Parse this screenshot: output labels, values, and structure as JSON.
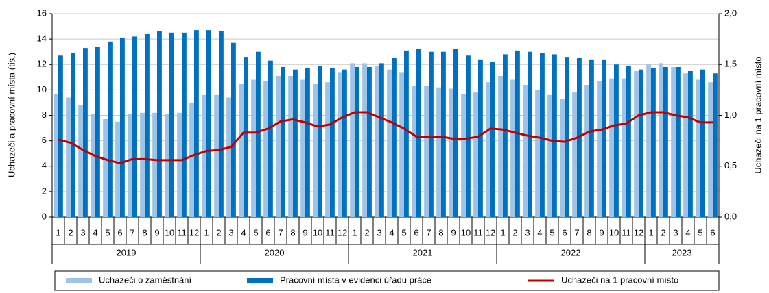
{
  "chart_data": {
    "type": "bar-line",
    "y_label": "Uchazeči a pracovní  místa (tis.)",
    "y2_label": "Uchazeči na 1 pracovní  místo",
    "periods": [
      {
        "year": "2019",
        "months": [
          "1",
          "2",
          "3",
          "4",
          "5",
          "6",
          "7",
          "8",
          "9",
          "10",
          "11",
          "12"
        ]
      },
      {
        "year": "2020",
        "months": [
          "1",
          "2",
          "3",
          "4",
          "5",
          "6",
          "7",
          "8",
          "9",
          "10",
          "11",
          "12"
        ]
      },
      {
        "year": "2021",
        "months": [
          "1",
          "2",
          "3",
          "4",
          "5",
          "6",
          "7",
          "8",
          "9",
          "10",
          "11",
          "12"
        ]
      },
      {
        "year": "2022",
        "months": [
          "1",
          "2",
          "3",
          "4",
          "5",
          "6",
          "7",
          "8",
          "9",
          "10",
          "11",
          "12"
        ]
      },
      {
        "year": "2023",
        "months": [
          "1",
          "2",
          "3",
          "4",
          "5",
          "6"
        ]
      }
    ],
    "ylim": [
      0,
      16
    ],
    "yticks": [
      0,
      2,
      4,
      6,
      8,
      10,
      12,
      14,
      16
    ],
    "y2lim": [
      0,
      2
    ],
    "y2ticks": [
      {
        "value": 0,
        "label": "0,0"
      },
      {
        "value": 0.5,
        "label": "0,5"
      },
      {
        "value": 1,
        "label": "1,0"
      },
      {
        "value": 1.5,
        "label": "1,5"
      },
      {
        "value": 2,
        "label": "2,0"
      }
    ],
    "grid": true,
    "series": [
      {
        "name": "Uchazeči o zaměstnání",
        "kind": "bar",
        "color": "#9dc3e6",
        "values": [
          9.7,
          9.4,
          8.8,
          8.1,
          7.7,
          7.5,
          8.1,
          8.2,
          8.2,
          8.1,
          8.2,
          9.0,
          9.6,
          9.6,
          9.4,
          10.5,
          10.8,
          10.7,
          11.1,
          11.1,
          10.8,
          10.5,
          10.6,
          11.4,
          12.1,
          12.1,
          11.9,
          11.6,
          11.4,
          10.3,
          10.3,
          10.2,
          10.1,
          9.7,
          9.8,
          10.6,
          11.1,
          10.8,
          10.4,
          10.0,
          9.6,
          9.3,
          9.8,
          10.4,
          10.7,
          10.9,
          10.9,
          11.5,
          12.0,
          12.1,
          11.8,
          11.3,
          10.8,
          10.6
        ]
      },
      {
        "name": "Pracovní místa v evidenci úřadu práce",
        "kind": "bar",
        "color": "#0070c0",
        "values": [
          12.7,
          12.9,
          13.3,
          13.4,
          13.8,
          14.1,
          14.2,
          14.4,
          14.6,
          14.5,
          14.5,
          14.7,
          14.7,
          14.6,
          13.7,
          12.6,
          13.0,
          12.3,
          11.8,
          11.6,
          11.7,
          11.9,
          11.7,
          11.6,
          11.8,
          11.8,
          12.1,
          12.5,
          13.1,
          13.2,
          13.0,
          13.0,
          13.2,
          12.7,
          12.4,
          12.2,
          12.8,
          13.1,
          13.0,
          12.9,
          12.8,
          12.6,
          12.5,
          12.4,
          12.4,
          12.0,
          11.9,
          11.6,
          11.7,
          11.8,
          11.8,
          11.5,
          11.6,
          11.3
        ]
      },
      {
        "name": "Uchazeči na 1 pracovní místo",
        "kind": "line",
        "axis": "y2",
        "color": "#c00000",
        "values": [
          0.76,
          0.73,
          0.66,
          0.6,
          0.56,
          0.53,
          0.57,
          0.57,
          0.56,
          0.56,
          0.56,
          0.61,
          0.65,
          0.66,
          0.69,
          0.83,
          0.83,
          0.87,
          0.94,
          0.96,
          0.93,
          0.89,
          0.91,
          0.98,
          1.03,
          1.03,
          0.98,
          0.93,
          0.87,
          0.79,
          0.79,
          0.79,
          0.77,
          0.77,
          0.79,
          0.87,
          0.86,
          0.83,
          0.8,
          0.78,
          0.75,
          0.74,
          0.78,
          0.84,
          0.86,
          0.9,
          0.92,
          1.0,
          1.03,
          1.03,
          1.0,
          0.98,
          0.93,
          0.93
        ]
      }
    ]
  }
}
